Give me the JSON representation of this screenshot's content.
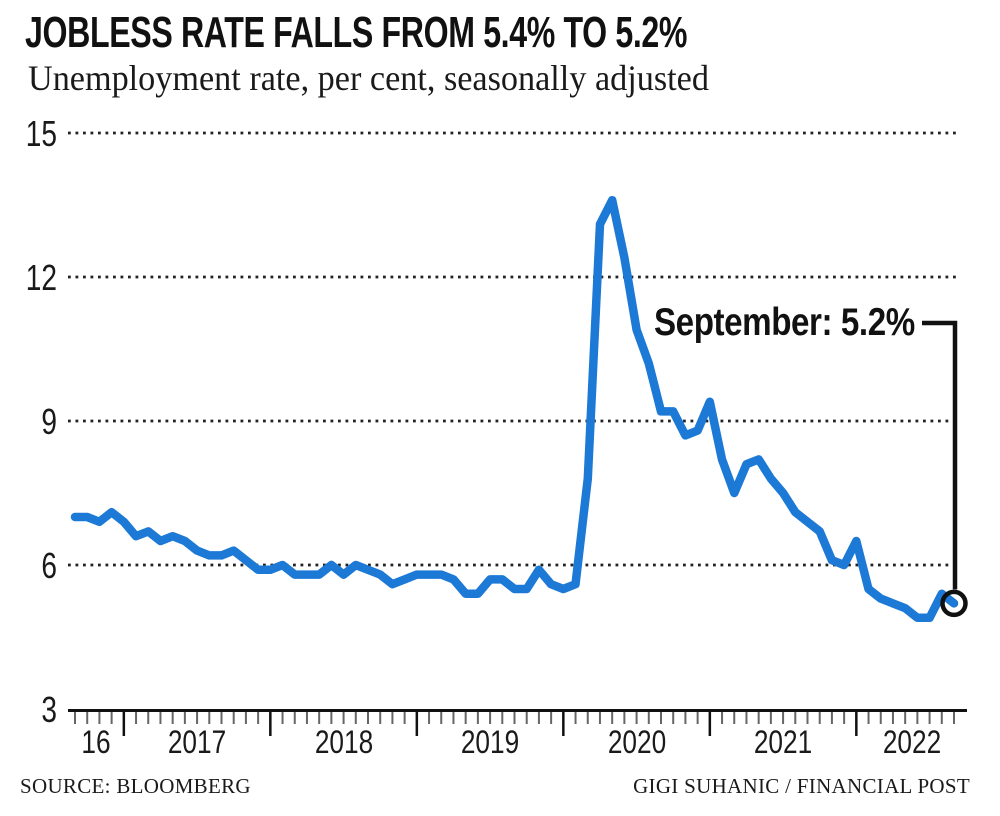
{
  "header": {
    "title": "JOBLESS RATE FALLS FROM 5.4% TO 5.2%",
    "subtitle": "Unemployment rate, per cent, seasonally adjusted"
  },
  "footer": {
    "source": "SOURCE: BLOOMBERG",
    "credit": "GIGI SUHANIC / FINANCIAL POST"
  },
  "colors": {
    "line": "#1d79d6",
    "ink": "#111111",
    "grid": "#222222",
    "minor_tick": "#666666"
  },
  "chart_data": {
    "type": "line",
    "title": "JOBLESS RATE FALLS FROM 5.4% TO 5.2%",
    "subtitle": "Unemployment rate, per cent, seasonally adjusted",
    "unit": "per cent",
    "frequency": "monthly",
    "x_start": "Sep 2016",
    "x_end": "Sep 2022",
    "x_axis_year_labels": [
      "16",
      "2017",
      "2018",
      "2019",
      "2020",
      "2021",
      "2022"
    ],
    "y_ticks": [
      3,
      6,
      9,
      12,
      15
    ],
    "ylim": [
      3,
      15
    ],
    "grid": "dotted horizontal",
    "legend": "none",
    "series": [
      {
        "name": "Unemployment rate",
        "values": [
          7.0,
          7.0,
          6.9,
          7.1,
          6.9,
          6.6,
          6.7,
          6.5,
          6.6,
          6.5,
          6.3,
          6.2,
          6.2,
          6.3,
          6.1,
          5.9,
          5.9,
          6.0,
          5.8,
          5.8,
          5.8,
          6.0,
          5.8,
          6.0,
          5.9,
          5.8,
          5.6,
          5.7,
          5.8,
          5.8,
          5.8,
          5.7,
          5.4,
          5.4,
          5.7,
          5.7,
          5.5,
          5.5,
          5.9,
          5.6,
          5.5,
          5.6,
          7.8,
          13.1,
          13.6,
          12.4,
          10.9,
          10.2,
          9.2,
          9.2,
          8.7,
          8.8,
          9.4,
          8.2,
          7.5,
          8.1,
          8.2,
          7.8,
          7.5,
          7.1,
          6.9,
          6.7,
          6.1,
          6.0,
          6.5,
          5.5,
          5.3,
          5.2,
          5.1,
          4.9,
          4.9,
          5.4,
          5.2
        ]
      }
    ],
    "highlight_point": {
      "label": "September: 5.2%",
      "month": "Sep 2022",
      "value": 5.2
    }
  }
}
